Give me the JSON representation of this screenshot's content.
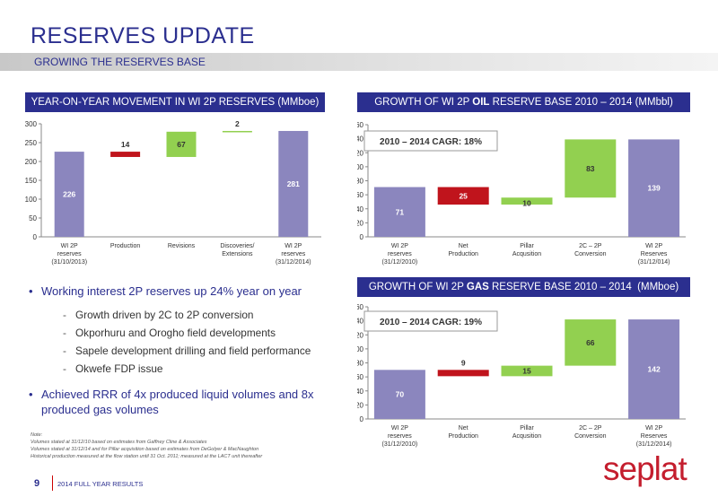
{
  "header": {
    "title": "RESERVES UPDATE",
    "subtitle": "GROWING THE RESERVES BASE"
  },
  "panels": {
    "left": "YEAR-ON-YEAR MOVEMENT IN WI 2P RESERVES (MMboe)",
    "oil_prefix": "GROWTH OF WI 2P ",
    "oil_bold": "OIL",
    "oil_suffix": " RESERVE BASE 2010 – 2014 (MMbbl)",
    "gas_prefix": "GROWTH OF WI 2P ",
    "gas_bold": "GAS",
    "gas_suffix": " RESERVE BASE 2010 – 2014  (MMboe)"
  },
  "bullets": {
    "main1": "Working interest 2P reserves up 24% year on year",
    "subs": [
      "Growth driven by 2C to 2P conversion",
      "Okporhuru and Orogho field developments",
      "Sapele development drilling and field performance",
      "Okwefe FDP issue"
    ],
    "main2": "Achieved RRR of 4x produced liquid volumes and 8x produced gas volumes"
  },
  "note": {
    "line1": "Note:",
    "line2": "Volumes stated at 31/12/10 based on estimates from Gaffney Cline & Associates",
    "line3": "Volumes stated at 31/12/14 and for Pillar acquisition based on estimates from  DeGolyer & MacNaughton",
    "line4": "Historical production measured at the flow station until 31 Oct. 2011; measured at the LACT unit thereafter"
  },
  "footer": {
    "page": "9",
    "text": "2014 FULL YEAR RESULTS",
    "logo": "seplat"
  },
  "colors": {
    "navy": "#2b2f8f",
    "purple": "#8b86be",
    "red": "#c0141c",
    "green": "#92d050"
  },
  "chart_data": [
    {
      "type": "bar",
      "subtype": "waterfall",
      "categories": [
        [
          "WI 2P",
          "reserves",
          "(31/10/2013)"
        ],
        [
          "Production"
        ],
        [
          "Revisions"
        ],
        [
          "Discoveries/",
          "Extensions"
        ],
        [
          "WI 2P",
          "reserves",
          "(31/12/2014)"
        ]
      ],
      "bars": [
        {
          "base": 0,
          "top": 226,
          "label": "226",
          "kind": "total"
        },
        {
          "base": 212,
          "top": 226,
          "label": "14",
          "kind": "decrease"
        },
        {
          "base": 212,
          "top": 279,
          "label": "67",
          "kind": "increase"
        },
        {
          "base": 279,
          "top": 281,
          "label": "2",
          "kind": "increase"
        },
        {
          "base": 0,
          "top": 281,
          "label": "281",
          "kind": "total"
        }
      ],
      "ylim": [
        0,
        300
      ],
      "yticks": [
        0,
        50,
        100,
        150,
        200,
        250,
        300
      ]
    },
    {
      "type": "bar",
      "subtype": "waterfall",
      "annotation": "2010 – 2014 CAGR: 18%",
      "categories": [
        [
          "WI 2P",
          "reserves",
          "(31/12/2010)"
        ],
        [
          "Net",
          "Production"
        ],
        [
          "Pillar",
          "Acqusition"
        ],
        [
          "2C – 2P",
          "Conversion"
        ],
        [
          "WI 2P",
          "Reserves",
          "(31/12/014)"
        ]
      ],
      "bars": [
        {
          "base": 0,
          "top": 71,
          "label": "71",
          "kind": "total"
        },
        {
          "base": 46,
          "top": 71,
          "label": "25",
          "kind": "decrease"
        },
        {
          "base": 46,
          "top": 56,
          "label": "10",
          "kind": "increase"
        },
        {
          "base": 56,
          "top": 139,
          "label": "83",
          "kind": "increase"
        },
        {
          "base": 0,
          "top": 139,
          "label": "139",
          "kind": "total"
        }
      ],
      "ylim": [
        0,
        160
      ],
      "yticks": [
        0,
        20,
        40,
        60,
        80,
        100,
        120,
        140,
        160
      ]
    },
    {
      "type": "bar",
      "subtype": "waterfall",
      "annotation": "2010 – 2014 CAGR: 19%",
      "categories": [
        [
          "WI 2P",
          "reserves",
          "(31/12/2010)"
        ],
        [
          "Net",
          "Production"
        ],
        [
          "Pillar",
          "Acqusition"
        ],
        [
          "2C – 2P",
          "Conversion"
        ],
        [
          "WI 2P",
          "Reserves",
          "(31/12/2014)"
        ]
      ],
      "bars": [
        {
          "base": 0,
          "top": 70,
          "label": "70",
          "kind": "total"
        },
        {
          "base": 61,
          "top": 70,
          "label": "9",
          "kind": "decrease"
        },
        {
          "base": 61,
          "top": 76,
          "label": "15",
          "kind": "increase"
        },
        {
          "base": 76,
          "top": 142,
          "label": "66",
          "kind": "increase"
        },
        {
          "base": 0,
          "top": 142,
          "label": "142",
          "kind": "total"
        }
      ],
      "ylim": [
        0,
        160
      ],
      "yticks": [
        0,
        20,
        40,
        60,
        80,
        100,
        120,
        140,
        160
      ]
    }
  ]
}
